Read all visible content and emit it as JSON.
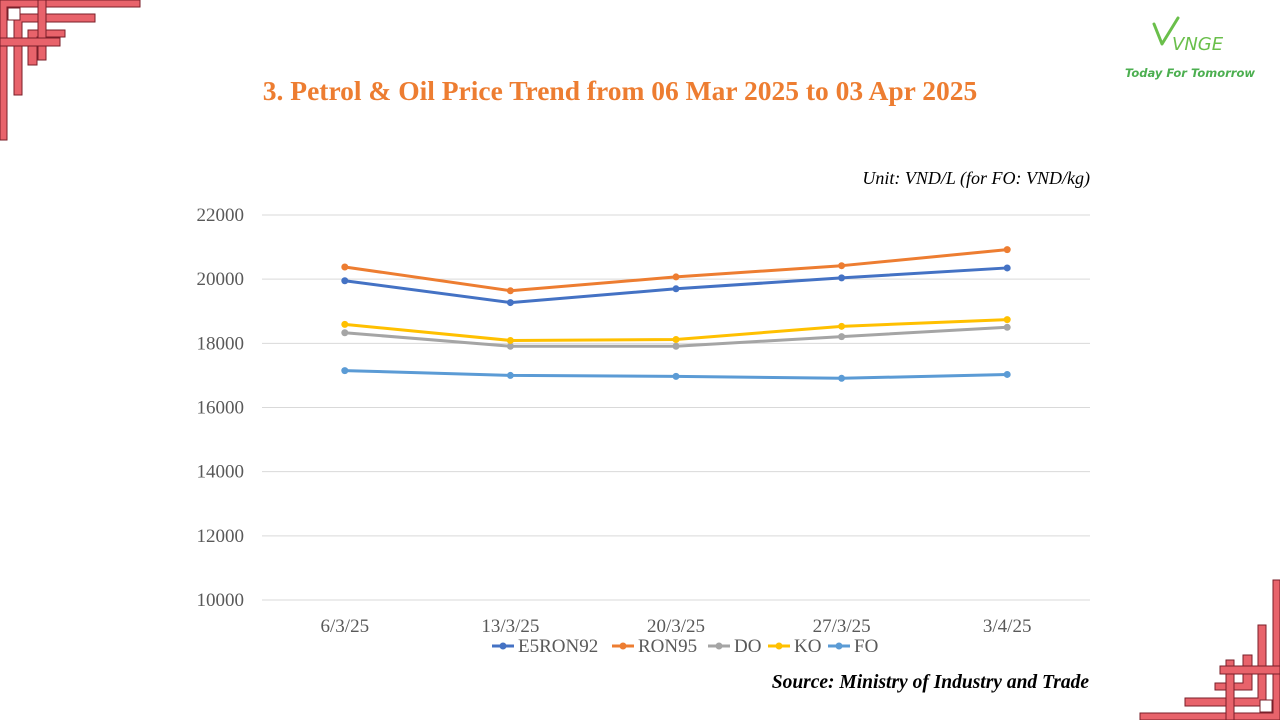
{
  "title": "3. Petrol & Oil Price Trend from 06 Mar 2025 to 03 Apr 2025",
  "unit_note": "Unit: VND/L (for FO: VND/kg)",
  "source": "Source: Ministry of Industry and Trade",
  "logo": {
    "text": "VNGE",
    "tagline": "Today For Tomorrow",
    "color": "#4caf50"
  },
  "colors": {
    "title": "#ed7d31",
    "decor_fill": "#e8636b",
    "decor_stroke": "#7a1f2a",
    "decor_accent": "#e8739a"
  },
  "chart_data": {
    "type": "line",
    "categories": [
      "6/3/25",
      "13/3/25",
      "20/3/25",
      "27/3/25",
      "3/4/25"
    ],
    "ylim": [
      10000,
      22000
    ],
    "yticks": [
      10000,
      12000,
      14000,
      16000,
      18000,
      20000,
      22000
    ],
    "grid": true,
    "legend_position": "bottom",
    "xlabel": "",
    "ylabel": "",
    "series": [
      {
        "name": "E5RON92",
        "color": "#4472c4",
        "values": [
          19950,
          19270,
          19700,
          20040,
          20350
        ]
      },
      {
        "name": "RON95",
        "color": "#ed7d31",
        "values": [
          20380,
          19640,
          20070,
          20420,
          20920
        ]
      },
      {
        "name": "DO",
        "color": "#a5a5a5",
        "values": [
          18330,
          17910,
          17910,
          18210,
          18500
        ]
      },
      {
        "name": "KO",
        "color": "#ffc000",
        "values": [
          18590,
          18090,
          18120,
          18530,
          18740
        ]
      },
      {
        "name": "FO",
        "color": "#5b9bd5",
        "values": [
          17150,
          17000,
          16970,
          16910,
          17030
        ]
      }
    ]
  }
}
